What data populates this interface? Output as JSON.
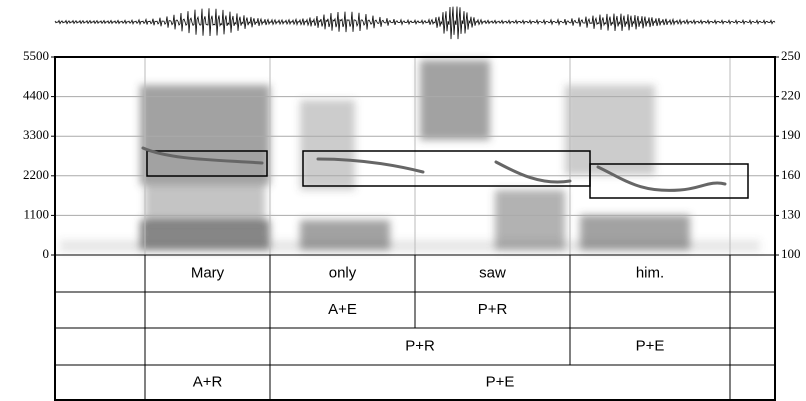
{
  "chart_data": {
    "type": "spectrogram",
    "ylim": [
      0,
      5500
    ],
    "yticks": [
      0,
      1100,
      2200,
      3300,
      4400,
      5500
    ],
    "y2lim": [
      100,
      250
    ],
    "y2ticks": [
      100,
      130,
      160,
      190,
      220,
      250
    ],
    "grid": true
  },
  "tiers": [
    {
      "intervals": [
        {
          "label": "Mary"
        },
        {
          "label": "only"
        },
        {
          "label": "saw"
        },
        {
          "label": "him."
        }
      ]
    },
    {
      "intervals": [
        {
          "label": "A+E"
        },
        {
          "label": "P+R"
        }
      ]
    },
    {
      "intervals": [
        {
          "label": "P+R"
        },
        {
          "label": "P+E"
        }
      ]
    },
    {
      "intervals": [
        {
          "label": "A+R"
        },
        {
          "label": "P+E"
        }
      ]
    }
  ]
}
